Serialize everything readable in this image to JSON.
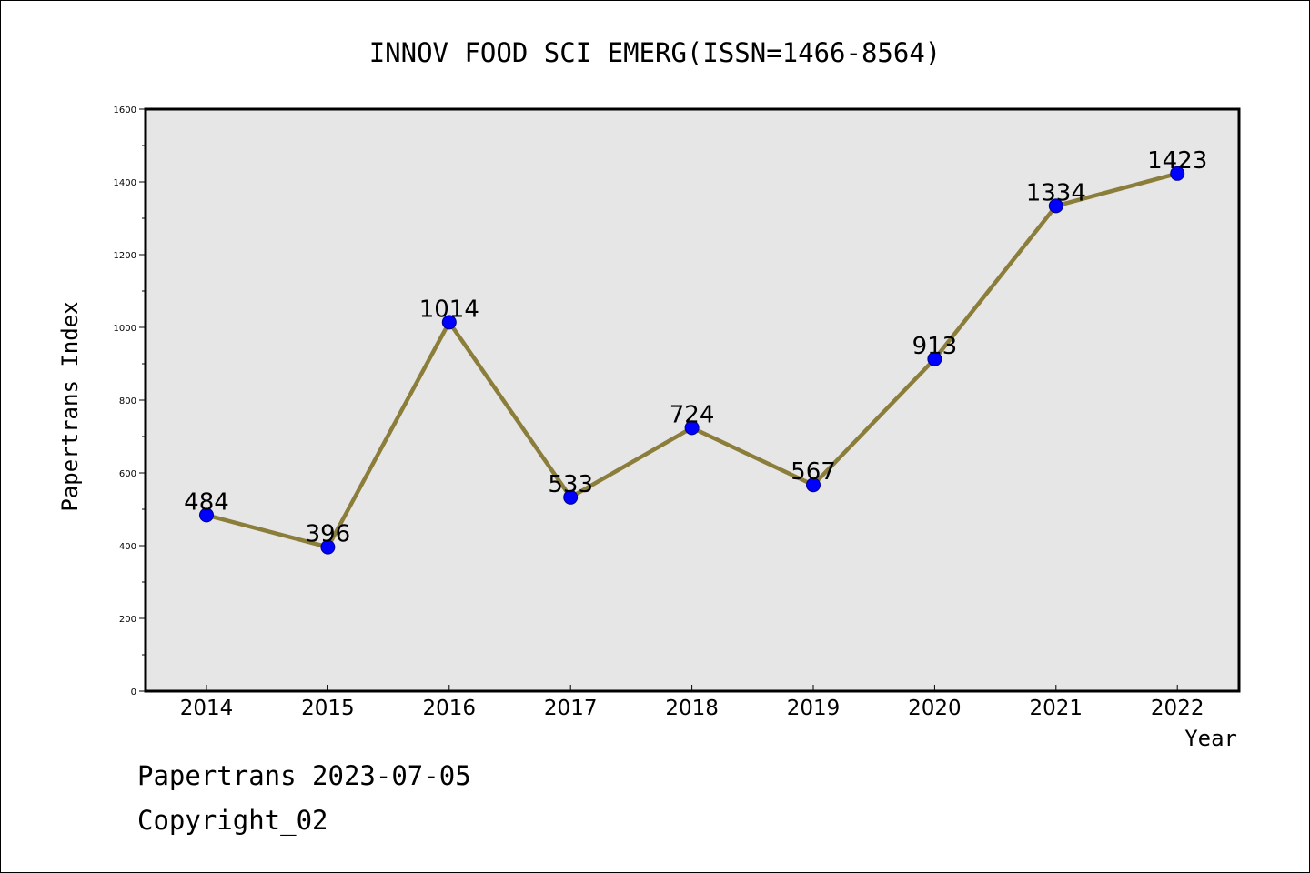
{
  "chart_data": {
    "type": "line",
    "title": "INNOV FOOD SCI EMERG(ISSN=1466-8564)",
    "xlabel": "Year",
    "ylabel": "Papertrans Index",
    "categories": [
      "2014",
      "2015",
      "2016",
      "2017",
      "2018",
      "2019",
      "2020",
      "2021",
      "2022"
    ],
    "series": [
      {
        "values": [
          484,
          396,
          1014,
          533,
          724,
          567,
          913,
          1334,
          1423
        ]
      }
    ],
    "data_labels": [
      "484",
      "396",
      "1014",
      "533",
      "724",
      "567",
      "913",
      "1334",
      "1423"
    ],
    "ylim": [
      0,
      1600
    ],
    "yticks": [
      0,
      200,
      400,
      600,
      800,
      1000,
      1200,
      1400,
      1600
    ],
    "ytick_labels": [
      "0",
      "200",
      "400",
      "600",
      "800",
      "1000",
      "1200",
      "1400",
      "1600"
    ],
    "grid": false,
    "colors": {
      "plot_background": "#e6e6e6",
      "line": "#8b7d3a",
      "marker_fill": "#0000ff",
      "marker_edge": "#00008b"
    }
  },
  "footer": {
    "line1": "Papertrans 2023-07-05",
    "line2": "Copyright_02"
  }
}
